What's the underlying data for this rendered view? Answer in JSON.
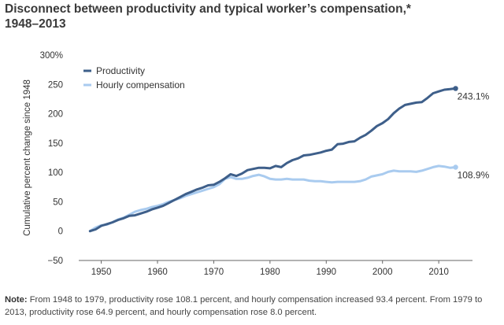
{
  "chart_data": {
    "type": "line",
    "title": "Disconnect between productivity and typical worker’s compensation,* 1948–2013",
    "xlabel": "",
    "ylabel": "Cumulative percent change since 1948",
    "xlim": [
      1946,
      2016
    ],
    "ylim": [
      -50,
      300
    ],
    "xticks": [
      1950,
      1960,
      1970,
      1980,
      1990,
      2000,
      2010
    ],
    "xtick_labels": [
      "1950",
      "1960",
      "1970",
      "1980",
      "1990",
      "2000",
      "2010"
    ],
    "yticks": [
      300,
      250,
      200,
      150,
      100,
      50,
      0,
      -50
    ],
    "ytick_labels": [
      "300%",
      "250",
      "200",
      "150",
      "100",
      "50",
      "0",
      "−50"
    ],
    "grid": false,
    "legend_position": "top-left",
    "series": [
      {
        "name": "Productivity",
        "color": "#3e5f8a",
        "end_label": "243.1%",
        "x": [
          1948,
          1949,
          1950,
          1951,
          1952,
          1953,
          1954,
          1955,
          1956,
          1957,
          1958,
          1959,
          1960,
          1961,
          1962,
          1963,
          1964,
          1965,
          1966,
          1967,
          1968,
          1969,
          1970,
          1971,
          1972,
          1973,
          1974,
          1975,
          1976,
          1977,
          1978,
          1979,
          1980,
          1981,
          1982,
          1983,
          1984,
          1985,
          1986,
          1987,
          1988,
          1989,
          1990,
          1991,
          1992,
          1993,
          1994,
          1995,
          1996,
          1997,
          1998,
          1999,
          2000,
          2001,
          2002,
          2003,
          2004,
          2005,
          2006,
          2007,
          2008,
          2009,
          2010,
          2011,
          2012,
          2013
        ],
        "values": [
          0,
          3,
          9,
          12,
          15,
          19,
          22,
          26,
          27,
          30,
          33,
          37,
          40,
          43,
          48,
          53,
          58,
          63,
          67,
          71,
          74,
          78,
          79,
          84,
          90,
          97,
          94,
          98,
          104,
          106,
          108,
          108,
          107,
          111,
          109,
          116,
          121,
          124,
          129,
          130,
          132,
          134,
          137,
          139,
          148,
          149,
          152,
          153,
          159,
          164,
          171,
          179,
          184,
          191,
          201,
          209,
          215,
          217,
          219,
          220,
          227,
          235,
          238,
          241,
          242,
          243.1
        ]
      },
      {
        "name": "Hourly compensation",
        "color": "#a9cbef",
        "end_label": "108.9%",
        "x": [
          1948,
          1949,
          1950,
          1951,
          1952,
          1953,
          1954,
          1955,
          1956,
          1957,
          1958,
          1959,
          1960,
          1961,
          1962,
          1963,
          1964,
          1965,
          1966,
          1967,
          1968,
          1969,
          1970,
          1971,
          1972,
          1973,
          1974,
          1975,
          1976,
          1977,
          1978,
          1979,
          1980,
          1981,
          1982,
          1983,
          1984,
          1985,
          1986,
          1987,
          1988,
          1989,
          1990,
          1991,
          1992,
          1993,
          1994,
          1995,
          1996,
          1997,
          1998,
          1999,
          2000,
          2001,
          2002,
          2003,
          2004,
          2005,
          2006,
          2007,
          2008,
          2009,
          2010,
          2011,
          2012,
          2013
        ],
        "values": [
          0,
          6,
          10,
          11,
          15,
          20,
          23,
          28,
          33,
          36,
          38,
          41,
          43,
          46,
          50,
          53,
          56,
          60,
          63,
          66,
          69,
          72,
          75,
          80,
          89,
          92,
          89,
          89,
          91,
          94,
          96,
          93.4,
          89,
          88,
          88,
          89,
          88,
          88,
          88,
          86,
          85,
          85,
          84,
          83,
          84,
          84,
          84,
          84,
          85,
          88,
          93,
          95,
          97,
          101,
          103,
          102,
          102,
          102,
          101,
          103,
          106,
          109,
          111,
          110,
          108,
          108.9
        ]
      }
    ]
  },
  "note": {
    "label": "Note:",
    "text": " From 1948 to 1979, productivity rose 108.1 percent, and hourly compensation increased 93.4 percent. From 1979 to 2013, productivity rose 64.9 percent, and hourly compensation rose 8.0 percent."
  }
}
